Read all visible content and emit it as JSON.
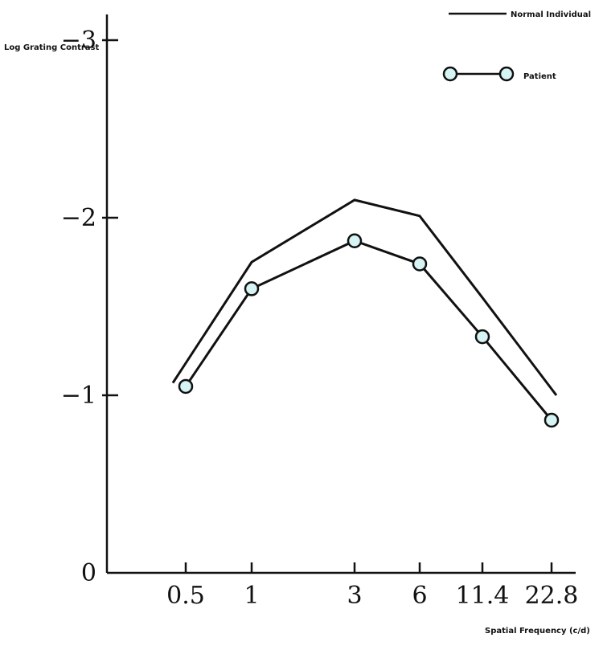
{
  "chart_data": {
    "type": "line",
    "title": "",
    "xlabel": "Spatial Frequency (c/d)",
    "ylabel": "Log Grating Contrast",
    "x_ticks": [
      "0.5",
      "1",
      "3",
      "6",
      "11.4",
      "22.8"
    ],
    "y_ticks": [
      "0",
      "−1",
      "−2",
      "−3"
    ],
    "ylim": [
      0,
      -3
    ],
    "grid": false,
    "legend_position": "top-right",
    "series": [
      {
        "name": "Normal Individual",
        "marker": "none",
        "color": "#111111",
        "points": [
          {
            "x": "0.5",
            "y": -1.07
          },
          {
            "x": "1",
            "y": -1.75
          },
          {
            "x": "3",
            "y": -2.1
          },
          {
            "x": "6",
            "y": -2.01
          },
          {
            "x": "11.4",
            "y": -1.55
          },
          {
            "x": "22.8",
            "y": -1.0
          }
        ]
      },
      {
        "name": "Patient",
        "marker": "circle",
        "color": "#111111",
        "marker_fill": "#d6f4f4",
        "points": [
          {
            "x": "0.5",
            "y": -1.05
          },
          {
            "x": "1",
            "y": -1.6
          },
          {
            "x": "3",
            "y": -1.87
          },
          {
            "x": "6",
            "y": -1.74
          },
          {
            "x": "11.4",
            "y": -1.33
          },
          {
            "x": "22.8",
            "y": -0.86
          }
        ]
      }
    ]
  }
}
